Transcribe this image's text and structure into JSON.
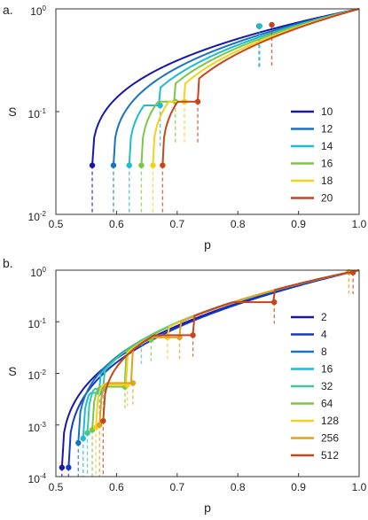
{
  "colors": {
    "axis": "#333333",
    "series_a": [
      "#1a17a8",
      "#1a73c0",
      "#1cbcd4",
      "#7cc64a",
      "#f2d21a",
      "#c8441a"
    ],
    "series_b": [
      "#1a17a8",
      "#1638c0",
      "#1a73c0",
      "#1cbcd4",
      "#3ec79a",
      "#7cc64a",
      "#f2d21a",
      "#e0a020",
      "#c8441a"
    ]
  },
  "chart_data": [
    {
      "panel_label": "a.",
      "type": "line",
      "xlabel": "p",
      "ylabel": "S",
      "xlim": [
        0.5,
        1.0
      ],
      "ylim": [
        0.01,
        1.0
      ],
      "yscale": "log",
      "grid": false,
      "legend_position": "right",
      "xticks": [
        "0.5",
        "0.6",
        "0.7",
        "0.8",
        "0.9",
        "1.0"
      ],
      "yticks": [
        {
          "value": 1,
          "base": "10",
          "exp": "0"
        },
        {
          "value": 0.1,
          "base": "10",
          "exp": "-1"
        },
        {
          "value": 0.01,
          "base": "10",
          "exp": "-2"
        }
      ],
      "series": [
        {
          "name": "10",
          "jump_points": [
            {
              "x": 0.56,
              "y": 0.03
            }
          ]
        },
        {
          "name": "12",
          "jump_points": [
            {
              "x": 0.595,
              "y": 0.03
            },
            {
              "x": 0.835,
              "y": 0.68
            }
          ]
        },
        {
          "name": "14",
          "jump_points": [
            {
              "x": 0.621,
              "y": 0.03
            },
            {
              "x": 0.672,
              "y": 0.115
            },
            {
              "x": 0.836,
              "y": 0.68
            }
          ]
        },
        {
          "name": "16",
          "jump_points": [
            {
              "x": 0.641,
              "y": 0.03
            },
            {
              "x": 0.697,
              "y": 0.125
            }
          ]
        },
        {
          "name": "18",
          "jump_points": [
            {
              "x": 0.66,
              "y": 0.03
            },
            {
              "x": 0.712,
              "y": 0.125
            }
          ]
        },
        {
          "name": "20",
          "jump_points": [
            {
              "x": 0.676,
              "y": 0.03
            },
            {
              "x": 0.734,
              "y": 0.125
            },
            {
              "x": 0.856,
              "y": 0.7
            }
          ]
        }
      ]
    },
    {
      "panel_label": "b.",
      "type": "line",
      "xlabel": "p",
      "ylabel": "S",
      "xlim": [
        0.5,
        1.0
      ],
      "ylim": [
        0.0001,
        1.0
      ],
      "yscale": "log",
      "grid": false,
      "legend_position": "right",
      "xticks": [
        "0.5",
        "0.6",
        "0.7",
        "0.8",
        "0.9",
        "1.0"
      ],
      "yticks": [
        {
          "value": 1,
          "base": "10",
          "exp": "0"
        },
        {
          "value": 0.1,
          "base": "10",
          "exp": "-1"
        },
        {
          "value": 0.01,
          "base": "10",
          "exp": "-2"
        },
        {
          "value": 0.001,
          "base": "10",
          "exp": "-3"
        },
        {
          "value": 0.0001,
          "base": "10",
          "exp": "-4"
        }
      ],
      "series": [
        {
          "name": "2",
          "jump_points": [
            {
              "x": 0.51,
              "y": 0.00015
            }
          ]
        },
        {
          "name": "4",
          "jump_points": [
            {
              "x": 0.521,
              "y": 0.00015
            }
          ]
        },
        {
          "name": "8",
          "jump_points": [
            {
              "x": 0.537,
              "y": 0.00045
            }
          ]
        },
        {
          "name": "16",
          "jump_points": [
            {
              "x": 0.545,
              "y": 0.00055
            },
            {
              "x": 0.572,
              "y": 0.0042
            }
          ]
        },
        {
          "name": "32",
          "jump_points": [
            {
              "x": 0.552,
              "y": 0.0007
            },
            {
              "x": 0.578,
              "y": 0.005
            },
            {
              "x": 0.641,
              "y": 0.04
            }
          ]
        },
        {
          "name": "64",
          "jump_points": [
            {
              "x": 0.56,
              "y": 0.0008
            },
            {
              "x": 0.614,
              "y": 0.0055
            },
            {
              "x": 0.657,
              "y": 0.045
            }
          ]
        },
        {
          "name": "128",
          "jump_points": [
            {
              "x": 0.566,
              "y": 0.0009
            },
            {
              "x": 0.618,
              "y": 0.006
            },
            {
              "x": 0.684,
              "y": 0.05
            }
          ]
        },
        {
          "name": "256",
          "jump_points": [
            {
              "x": 0.572,
              "y": 0.001
            },
            {
              "x": 0.627,
              "y": 0.0065
            },
            {
              "x": 0.704,
              "y": 0.05
            },
            {
              "x": 0.983,
              "y": 0.92
            }
          ]
        },
        {
          "name": "512",
          "jump_points": [
            {
              "x": 0.578,
              "y": 0.0012
            },
            {
              "x": 0.726,
              "y": 0.055
            },
            {
              "x": 0.86,
              "y": 0.24
            },
            {
              "x": 0.99,
              "y": 0.9
            }
          ]
        }
      ]
    }
  ]
}
